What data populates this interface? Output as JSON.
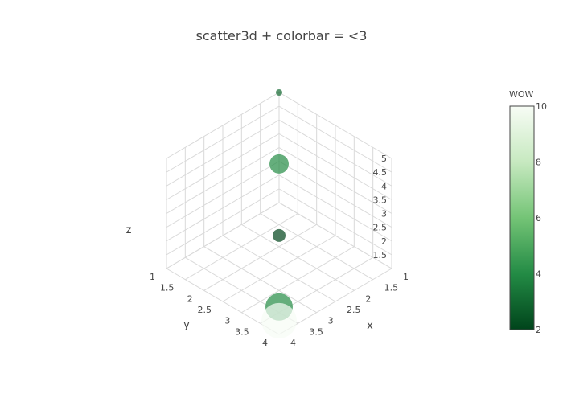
{
  "chart_data": {
    "type": "scatter3d",
    "title": "scatter3d + colorbar = <3",
    "xlabel": "x",
    "ylabel": "y",
    "zlabel": "z",
    "xlim": [
      1,
      4
    ],
    "ylim": [
      1,
      4
    ],
    "zlim": [
      1,
      5
    ],
    "x_ticks": [
      "1",
      "1.5",
      "2",
      "2.5",
      "3",
      "3.5",
      "4"
    ],
    "y_ticks": [
      "1",
      "1.5",
      "2",
      "2.5",
      "3",
      "3.5",
      "4"
    ],
    "z_ticks": [
      "1.5",
      "2",
      "2.5",
      "3",
      "3.5",
      "4",
      "4.5",
      "5"
    ],
    "points": [
      {
        "x": 1,
        "y": 1,
        "z": 5,
        "color": 3,
        "size": 8
      },
      {
        "x": 2,
        "y": 2,
        "z": 4,
        "color": 4,
        "size": 24
      },
      {
        "x": 3,
        "y": 3,
        "z": 3,
        "color": 2,
        "size": 16
      },
      {
        "x": 4,
        "y": 4,
        "z": 2,
        "color": 4,
        "size": 34
      },
      {
        "x": 4,
        "y": 4,
        "z": 1.5,
        "color": 10,
        "size": 44
      }
    ],
    "colorbar": {
      "title": "WOW",
      "range": [
        2,
        10
      ],
      "ticks": [
        "2",
        "4",
        "6",
        "8",
        "10"
      ],
      "colorscale": [
        "#00441b",
        "#238b45",
        "#74c476",
        "#c7e9c0",
        "#f7fcf5"
      ]
    },
    "grid": true
  }
}
